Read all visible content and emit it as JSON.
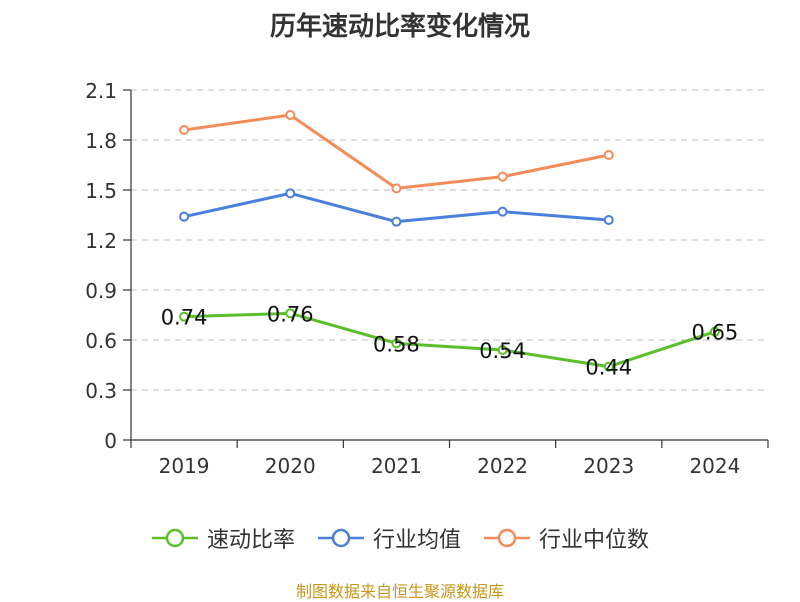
{
  "chart_data": {
    "type": "line",
    "title": "历年速动比率变化情况",
    "categories": [
      "2019",
      "2020",
      "2021",
      "2022",
      "2023",
      "2024"
    ],
    "ylim": [
      0,
      2.1
    ],
    "yticks": [
      "0",
      "0.3",
      "0.6",
      "0.9",
      "1.2",
      "1.5",
      "1.8",
      "2.1"
    ],
    "grid": true,
    "legend_position": "bottom",
    "series": [
      {
        "name": "速动比率",
        "color": "#5bbf2a",
        "values": [
          0.74,
          0.76,
          0.58,
          0.54,
          0.44,
          0.65
        ],
        "labels": [
          "0.74",
          "0.76",
          "0.58",
          "0.54",
          "0.44",
          "0.65"
        ]
      },
      {
        "name": "行业均值",
        "color": "#4a7fdc",
        "values": [
          1.34,
          1.48,
          1.31,
          1.37,
          1.32,
          null
        ]
      },
      {
        "name": "行业中位数",
        "color": "#f48c5a",
        "values": [
          1.86,
          1.95,
          1.51,
          1.58,
          1.71,
          null
        ]
      }
    ]
  },
  "source": "制图数据来自恒生聚源数据库"
}
